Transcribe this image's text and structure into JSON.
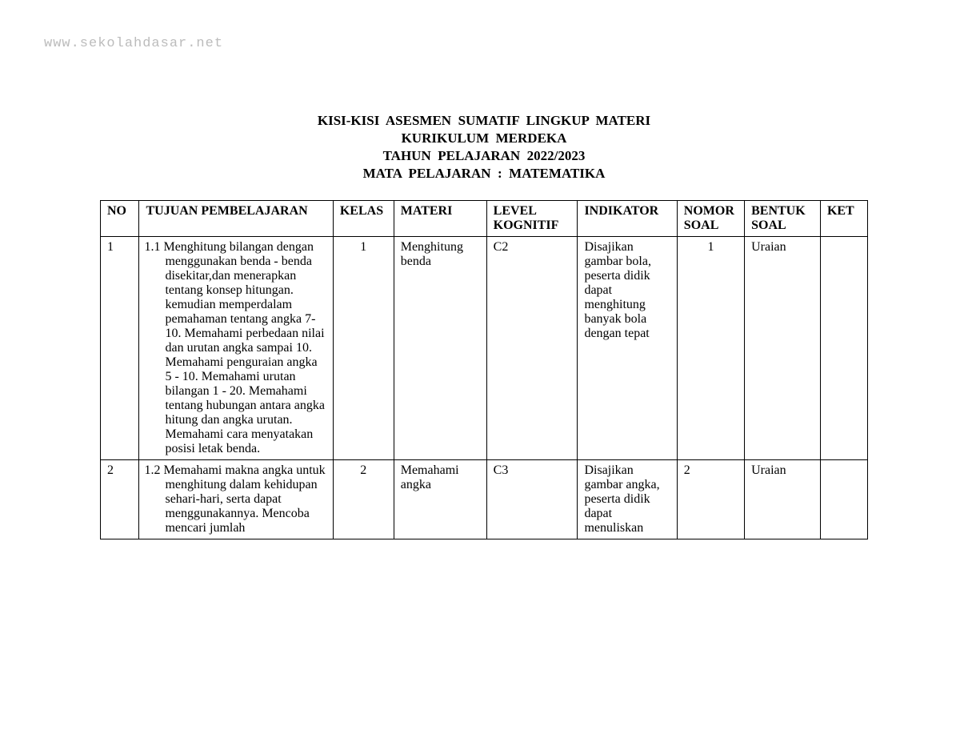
{
  "watermark": "www.sekolahdasar.net",
  "title": {
    "line1": "KISI-KISI  ASESMEN  SUMATIF  LINGKUP  MATERI",
    "line2": "KURIKULUM  MERDEKA",
    "line3": "TAHUN  PELAJARAN  2022/2023",
    "line4": "MATA  PELAJARAN  :  MATEMATIKA"
  },
  "table": {
    "headers": {
      "no": "NO",
      "tujuan": "TUJUAN  PEMBELAJARAN",
      "kelas": "KELAS",
      "materi": "MATERI",
      "level": "LEVEL KOGNITIF",
      "indikator": "INDIKATOR",
      "nomor": "NOMOR SOAL",
      "bentuk": "BENTUK SOAL",
      "ket": "KET"
    },
    "rows": [
      {
        "no": "1",
        "tujuan": "1.1 Menghitung bilangan dengan menggunakan benda - benda disekitar,dan menerapkan tentang konsep hitungan. kemudian memperdalam pemahaman tentang angka 7-10. Memahami perbedaan nilai dan urutan angka sampai 10. Memahami penguraian angka 5 - 10. Memahami urutan bilangan 1 - 20. Memahami tentang hubungan antara angka hitung dan angka urutan. Memahami cara menyatakan posisi letak benda.",
        "kelas": "1",
        "materi": "Menghitung benda",
        "level": "C2",
        "indikator": "Disajikan gambar bola, peserta didik dapat menghitung banyak bola dengan tepat",
        "nomor": "1",
        "bentuk": "Uraian",
        "ket": ""
      },
      {
        "no": "2",
        "tujuan": "1.2 Memahami makna angka untuk menghitung dalam kehidupan sehari-hari, serta dapat menggunakannya. Mencoba mencari jumlah",
        "kelas": "2",
        "materi": "Memahami angka",
        "level": "C3",
        "indikator": "Disajikan gambar angka, peserta didik dapat menuliskan",
        "nomor": "2",
        "bentuk": "Uraian",
        "ket": ""
      }
    ]
  },
  "style": {
    "page_bg": "#ffffff",
    "text_color": "#000000",
    "watermark_color": "#bcbcbc",
    "border_color": "#000000",
    "body_font": "Times New Roman",
    "watermark_font": "Courier New",
    "title_fontsize_pt": 13,
    "cell_fontsize_pt": 12
  }
}
